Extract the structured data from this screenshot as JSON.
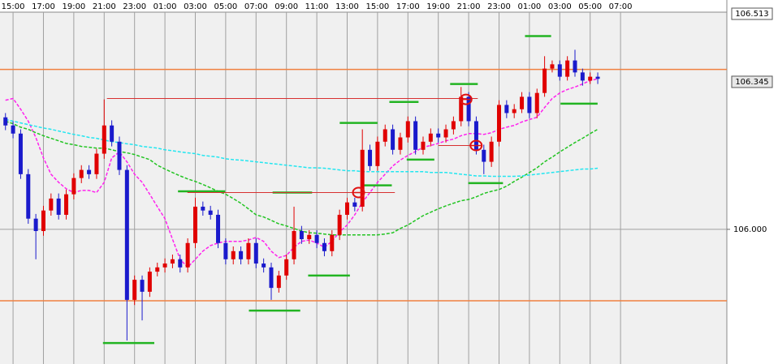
{
  "chart_data": {
    "type": "candlestick",
    "xlim": [
      -0.86,
      47.0
    ],
    "xticks": [
      {
        "value": 0,
        "label": "15:00"
      },
      {
        "value": 2,
        "label": "17:00"
      },
      {
        "value": 4,
        "label": "19:00"
      },
      {
        "value": 6,
        "label": "21:00"
      },
      {
        "value": 8,
        "label": "23:00"
      },
      {
        "value": 10,
        "label": "01:00"
      },
      {
        "value": 12,
        "label": "03:00"
      },
      {
        "value": 14,
        "label": "05:00"
      },
      {
        "value": 16,
        "label": "07:00"
      },
      {
        "value": 18,
        "label": "09:00"
      },
      {
        "value": 20,
        "label": "11:00"
      },
      {
        "value": 22,
        "label": "13:00"
      },
      {
        "value": 24,
        "label": "15:00"
      },
      {
        "value": 26,
        "label": "17:00"
      },
      {
        "value": 28,
        "label": "19:00"
      },
      {
        "value": 30,
        "label": "21:00"
      },
      {
        "value": 32,
        "label": "23:00"
      },
      {
        "value": 34,
        "label": "01:00"
      },
      {
        "value": 36,
        "label": "03:00"
      },
      {
        "value": 38,
        "label": "05:00"
      },
      {
        "value": 40,
        "label": "07:00"
      }
    ],
    "ylim": [
      105.685,
      106.508
    ],
    "yticks": [
      {
        "value": 106,
        "label": "106.000"
      }
    ],
    "grid": true,
    "up_color": "#e00000",
    "down_color": "#1a1acc",
    "x": [
      -0.5,
      0,
      0.5,
      1,
      1.5,
      2,
      2.5,
      3,
      3.5,
      4,
      4.5,
      5,
      5.5,
      6,
      6.5,
      7,
      7.5,
      8,
      8.5,
      9,
      9.5,
      10,
      10.5,
      11,
      11.5,
      12,
      12.5,
      13,
      13.5,
      14,
      14.5,
      15,
      15.5,
      16,
      16.5,
      17,
      17.5,
      18,
      18.5,
      19,
      19.5,
      20,
      20.5,
      21,
      21.5,
      22,
      22.5,
      23,
      23.5,
      24,
      24.5,
      25,
      25.5,
      26,
      26.5,
      27,
      27.5,
      28,
      28.5,
      29,
      29.5,
      30,
      30.5,
      31,
      31.5,
      32,
      32.5,
      33,
      33.5,
      34,
      34.5,
      35,
      35.5,
      36,
      36.5,
      37,
      37.5,
      38,
      38.5
    ],
    "ohlc": [
      [
        106.262,
        106.272,
        106.232,
        106.243
      ],
      [
        106.243,
        106.253,
        106.213,
        106.224
      ],
      [
        106.224,
        106.234,
        106.118,
        106.129
      ],
      [
        106.129,
        106.141,
        106.013,
        106.025
      ],
      [
        106.025,
        106.036,
        105.93,
        105.996
      ],
      [
        105.996,
        106.055,
        105.985,
        106.044
      ],
      [
        106.044,
        106.084,
        106.032,
        106.072
      ],
      [
        106.072,
        106.084,
        106.023,
        106.034
      ],
      [
        106.034,
        106.093,
        106.023,
        106.082
      ],
      [
        106.082,
        106.131,
        106.07,
        106.12
      ],
      [
        106.12,
        106.15,
        106.108,
        106.139
      ],
      [
        106.139,
        106.15,
        106.118,
        106.129
      ],
      [
        106.129,
        106.188,
        106.118,
        106.177
      ],
      [
        106.177,
        106.304,
        106.165,
        106.243
      ],
      [
        106.243,
        106.255,
        106.194,
        106.205
      ],
      [
        106.205,
        106.217,
        106.127,
        106.139
      ],
      [
        106.139,
        106.15,
        105.74,
        105.835
      ],
      [
        105.835,
        105.892,
        105.823,
        105.882
      ],
      [
        105.882,
        105.892,
        105.787,
        105.854
      ],
      [
        105.854,
        105.911,
        105.842,
        105.901
      ],
      [
        105.901,
        105.922,
        105.89,
        105.911
      ],
      [
        105.911,
        105.932,
        105.899,
        105.92
      ],
      [
        105.92,
        105.941,
        105.909,
        105.93
      ],
      [
        105.93,
        105.941,
        105.899,
        105.911
      ],
      [
        105.911,
        105.979,
        105.899,
        105.968
      ],
      [
        105.968,
        106.074,
        105.956,
        106.053
      ],
      [
        106.053,
        106.065,
        106.032,
        106.044
      ],
      [
        106.044,
        106.055,
        106.023,
        106.034
      ],
      [
        106.034,
        106.046,
        105.956,
        105.968
      ],
      [
        105.968,
        105.979,
        105.918,
        105.93
      ],
      [
        105.93,
        105.96,
        105.918,
        105.949
      ],
      [
        105.949,
        105.96,
        105.918,
        105.93
      ],
      [
        105.93,
        105.979,
        105.918,
        105.968
      ],
      [
        105.968,
        105.979,
        105.909,
        105.92
      ],
      [
        105.92,
        105.932,
        105.899,
        105.911
      ],
      [
        105.911,
        105.922,
        105.835,
        105.863
      ],
      [
        105.863,
        105.903,
        105.852,
        105.892
      ],
      [
        105.892,
        105.941,
        105.882,
        105.93
      ],
      [
        105.93,
        106.053,
        105.918,
        105.996
      ],
      [
        105.996,
        106.008,
        105.966,
        105.977
      ],
      [
        105.977,
        105.998,
        105.966,
        105.987
      ],
      [
        105.987,
        105.998,
        105.956,
        105.968
      ],
      [
        105.968,
        105.979,
        105.937,
        105.949
      ],
      [
        105.949,
        105.998,
        105.937,
        105.987
      ],
      [
        105.987,
        106.046,
        105.975,
        106.034
      ],
      [
        106.034,
        106.074,
        106.023,
        106.063
      ],
      [
        106.063,
        106.074,
        106.042,
        106.053
      ],
      [
        106.053,
        106.234,
        106.042,
        106.186
      ],
      [
        106.186,
        106.198,
        106.137,
        106.148
      ],
      [
        106.148,
        106.217,
        106.137,
        106.205
      ],
      [
        106.205,
        106.245,
        106.194,
        106.234
      ],
      [
        106.234,
        106.245,
        106.175,
        106.186
      ],
      [
        106.186,
        106.226,
        106.175,
        106.215
      ],
      [
        106.215,
        106.264,
        106.203,
        106.253
      ],
      [
        106.253,
        106.264,
        106.175,
        106.186
      ],
      [
        106.186,
        106.217,
        106.175,
        106.205
      ],
      [
        106.205,
        106.236,
        106.194,
        106.224
      ],
      [
        106.224,
        106.236,
        106.203,
        106.215
      ],
      [
        106.215,
        106.245,
        106.203,
        106.234
      ],
      [
        106.234,
        106.264,
        106.222,
        106.253
      ],
      [
        106.253,
        106.333,
        106.241,
        106.31
      ],
      [
        106.31,
        106.321,
        106.241,
        106.253
      ],
      [
        106.253,
        106.264,
        106.175,
        106.186
      ],
      [
        106.186,
        106.198,
        106.129,
        106.158
      ],
      [
        106.158,
        106.217,
        106.146,
        106.205
      ],
      [
        106.205,
        106.302,
        106.194,
        106.291
      ],
      [
        106.291,
        106.302,
        106.26,
        106.272
      ],
      [
        106.272,
        106.293,
        106.26,
        106.281
      ],
      [
        106.281,
        106.321,
        106.272,
        106.31
      ],
      [
        106.31,
        106.321,
        106.26,
        106.272
      ],
      [
        106.272,
        106.329,
        106.26,
        106.319
      ],
      [
        106.319,
        106.405,
        106.31,
        106.376
      ],
      [
        106.376,
        106.395,
        106.367,
        106.386
      ],
      [
        106.386,
        106.395,
        106.348,
        106.357
      ],
      [
        106.357,
        106.405,
        106.348,
        106.395
      ],
      [
        106.395,
        106.42,
        106.357,
        106.367
      ],
      [
        106.367,
        106.376,
        106.336,
        106.348
      ],
      [
        106.348,
        106.367,
        106.34,
        106.357
      ],
      [
        106.357,
        106.367,
        106.34,
        106.352
      ]
    ],
    "lines": [
      {
        "color": "#ff22ee",
        "dash": true,
        "values": [
          106.302,
          106.306,
          106.281,
          106.253,
          106.215,
          106.167,
          106.129,
          106.11,
          106.095,
          106.086,
          106.091,
          106.091,
          106.086,
          106.11,
          106.167,
          106.181,
          106.158,
          106.129,
          106.11,
          106.082,
          106.053,
          106.025,
          105.977,
          105.93,
          105.911,
          105.93,
          105.949,
          105.962,
          105.968,
          105.972,
          105.972,
          105.972,
          105.975,
          105.981,
          105.972,
          105.949,
          105.934,
          105.939,
          105.958,
          105.972,
          105.975,
          105.968,
          105.958,
          105.972,
          105.994,
          106.01,
          106.034,
          106.063,
          106.086,
          106.11,
          106.129,
          106.148,
          106.162,
          106.173,
          106.182,
          106.192,
          106.196,
          106.201,
          106.207,
          106.211,
          106.219,
          106.224,
          106.224,
          106.222,
          106.226,
          106.234,
          106.239,
          106.243,
          106.251,
          106.257,
          106.262,
          106.285,
          106.306,
          106.319,
          106.327,
          106.333,
          106.34,
          106.348,
          106.352
        ]
      },
      {
        "color": "#22c422",
        "dash": true,
        "values": [
          106.253,
          106.247,
          106.239,
          106.234,
          106.226,
          106.219,
          106.213,
          106.207,
          106.201,
          106.198,
          106.194,
          106.192,
          106.19,
          106.19,
          106.186,
          106.182,
          106.179,
          106.175,
          106.169,
          106.163,
          106.15,
          106.141,
          106.133,
          106.125,
          106.118,
          106.112,
          106.105,
          106.097,
          106.089,
          106.082,
          106.072,
          106.061,
          106.048,
          106.034,
          106.029,
          106.021,
          106.013,
          106.008,
          106.002,
          105.996,
          105.992,
          105.991,
          105.989,
          105.987,
          105.987,
          105.987,
          105.987,
          105.987,
          105.987,
          105.987,
          105.989,
          105.992,
          106.002,
          106.01,
          106.021,
          106.032,
          106.04,
          106.048,
          106.055,
          106.061,
          106.067,
          106.07,
          106.076,
          106.084,
          106.089,
          106.093,
          106.101,
          106.112,
          106.122,
          106.133,
          106.144,
          106.158,
          106.169,
          106.181,
          106.192,
          106.203,
          106.213,
          106.224,
          106.234
        ]
      },
      {
        "color": "#22e6f0",
        "dash": true,
        "values": [
          106.257,
          106.253,
          106.249,
          106.245,
          106.241,
          106.237,
          106.234,
          106.23,
          106.226,
          106.222,
          106.219,
          106.215,
          106.213,
          106.209,
          106.205,
          106.203,
          106.2,
          106.198,
          106.194,
          106.192,
          106.19,
          106.186,
          106.184,
          106.181,
          106.179,
          106.177,
          106.173,
          106.171,
          106.169,
          106.165,
          106.163,
          106.162,
          106.16,
          106.158,
          106.156,
          106.154,
          106.152,
          106.15,
          106.148,
          106.146,
          106.144,
          106.144,
          106.143,
          106.141,
          106.139,
          106.137,
          106.137,
          106.135,
          106.135,
          106.135,
          106.135,
          106.135,
          106.135,
          106.135,
          106.135,
          106.135,
          106.133,
          106.133,
          106.133,
          106.131,
          106.129,
          106.127,
          106.125,
          106.125,
          106.124,
          106.124,
          106.124,
          106.124,
          106.125,
          106.127,
          106.129,
          106.131,
          106.133,
          106.135,
          106.137,
          106.139,
          106.141,
          106.141,
          106.143
        ]
      }
    ],
    "hlines": [
      {
        "value": 106.374,
        "color": "#f08040"
      },
      {
        "value": 105.833,
        "color": "#f08040"
      }
    ],
    "segments": [
      {
        "x": [
          5.92,
          9.3
        ],
        "value": 105.734,
        "color": "#22b422"
      },
      {
        "x": [
          10.86,
          13.97
        ],
        "value": 106.089,
        "color": "#22b422"
      },
      {
        "x": [
          15.53,
          18.91
        ],
        "value": 105.81,
        "color": "#22b422"
      },
      {
        "x": [
          17.09,
          19.69
        ],
        "value": 106.086,
        "color": "#22b422"
      },
      {
        "x": [
          19.43,
          22.18
        ],
        "value": 105.892,
        "color": "#22b422"
      },
      {
        "x": [
          21.51,
          24.0
        ],
        "value": 106.249,
        "color": "#22b422"
      },
      {
        "x": [
          23.06,
          24.94
        ],
        "value": 106.103,
        "color": "#22b422"
      },
      {
        "x": [
          24.78,
          26.7
        ],
        "value": 106.298,
        "color": "#22b422"
      },
      {
        "x": [
          25.92,
          27.74
        ],
        "value": 106.163,
        "color": "#22b422"
      },
      {
        "x": [
          28.78,
          30.6
        ],
        "value": 106.34,
        "color": "#22b422"
      },
      {
        "x": [
          29.97,
          32.26
        ],
        "value": 106.108,
        "color": "#22b422"
      },
      {
        "x": [
          33.71,
          35.43
        ],
        "value": 106.452,
        "color": "#22b422"
      },
      {
        "x": [
          36.05,
          38.49
        ],
        "value": 106.294,
        "color": "#22b422"
      },
      {
        "x": [
          6.18,
          30.6
        ],
        "value": 106.306,
        "color": "#d83030"
      },
      {
        "x": [
          11.48,
          25.14
        ],
        "value": 106.086,
        "color": "#d83030"
      },
      {
        "x": [
          28.0,
          30.6
        ],
        "value": 106.196,
        "color": "#d83030"
      }
    ],
    "circles": [
      {
        "x": 22.75,
        "value": 106.086
      },
      {
        "x": 29.82,
        "value": 106.304
      },
      {
        "x": 30.49,
        "value": 106.196
      }
    ],
    "price_labels": [
      {
        "value": 106.513,
        "label": "106.513"
      },
      {
        "value": 106.345,
        "label": "106.345"
      }
    ]
  }
}
